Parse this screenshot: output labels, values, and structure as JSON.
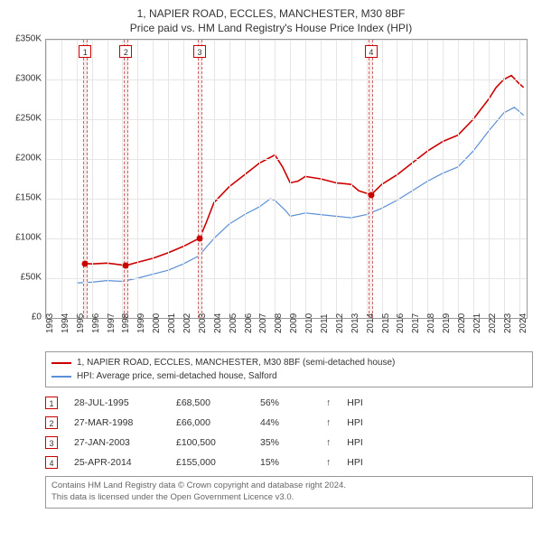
{
  "titleMain": "1, NAPIER ROAD, ECCLES, MANCHESTER, M30 8BF",
  "titleSub": "Price paid vs. HM Land Registry's House Price Index (HPI)",
  "chart": {
    "type": "line",
    "background_color": "#ffffff",
    "grid_color": "#e6e6e6",
    "border_color": "#999999",
    "xlim": [
      1993,
      2024.5
    ],
    "ylim": [
      0,
      350000
    ],
    "ytick_step": 50000,
    "yticks_labels": [
      "£0",
      "£50K",
      "£100K",
      "£150K",
      "£200K",
      "£250K",
      "£300K",
      "£350K"
    ],
    "xticks": [
      1993,
      1994,
      1995,
      1996,
      1997,
      1998,
      1999,
      2000,
      2001,
      2002,
      2003,
      2004,
      2005,
      2006,
      2007,
      2008,
      2009,
      2010,
      2011,
      2012,
      2013,
      2014,
      2015,
      2016,
      2017,
      2018,
      2019,
      2020,
      2021,
      2022,
      2023,
      2024
    ],
    "label_fontsize": 10,
    "line_width_property": 1.6,
    "line_width_hpi": 1.2,
    "vband_fill": "#f7ecec",
    "vband_border": "#cc6666",
    "marker_box_border": "#cc0000",
    "marker_box_bg": "#ffffff",
    "series": {
      "property": {
        "label": "1, NAPIER ROAD, ECCLES, MANCHESTER, M30 8BF (semi-detached house)",
        "color": "#cc0000",
        "points": [
          [
            1995.56,
            68500
          ],
          [
            1996,
            68000
          ],
          [
            1997,
            69000
          ],
          [
            1998.23,
            66000
          ],
          [
            1999,
            70000
          ],
          [
            2000,
            75000
          ],
          [
            2001,
            82000
          ],
          [
            2002,
            90000
          ],
          [
            2003.07,
            100500
          ],
          [
            2003.5,
            120000
          ],
          [
            2004,
            145000
          ],
          [
            2005,
            165000
          ],
          [
            2006,
            180000
          ],
          [
            2007,
            195000
          ],
          [
            2007.5,
            200000
          ],
          [
            2008,
            205000
          ],
          [
            2008.5,
            190000
          ],
          [
            2009,
            170000
          ],
          [
            2009.5,
            172000
          ],
          [
            2010,
            178000
          ],
          [
            2011,
            175000
          ],
          [
            2012,
            170000
          ],
          [
            2013,
            168000
          ],
          [
            2013.5,
            160000
          ],
          [
            2014.31,
            155000
          ],
          [
            2015,
            168000
          ],
          [
            2016,
            180000
          ],
          [
            2017,
            195000
          ],
          [
            2018,
            210000
          ],
          [
            2019,
            222000
          ],
          [
            2020,
            230000
          ],
          [
            2021,
            250000
          ],
          [
            2022,
            275000
          ],
          [
            2022.5,
            290000
          ],
          [
            2023,
            300000
          ],
          [
            2023.5,
            305000
          ],
          [
            2024,
            295000
          ],
          [
            2024.3,
            290000
          ]
        ]
      },
      "hpi": {
        "label": "HPI: Average price, semi-detached house, Salford",
        "color": "#5b8fd6",
        "points": [
          [
            1995,
            44000
          ],
          [
            1996,
            45000
          ],
          [
            1997,
            47000
          ],
          [
            1998,
            46000
          ],
          [
            1999,
            50000
          ],
          [
            2000,
            55000
          ],
          [
            2001,
            60000
          ],
          [
            2002,
            68000
          ],
          [
            2003,
            78000
          ],
          [
            2004,
            100000
          ],
          [
            2005,
            118000
          ],
          [
            2006,
            130000
          ],
          [
            2007,
            140000
          ],
          [
            2007.7,
            150000
          ],
          [
            2008,
            148000
          ],
          [
            2008.7,
            135000
          ],
          [
            2009,
            128000
          ],
          [
            2010,
            132000
          ],
          [
            2011,
            130000
          ],
          [
            2012,
            128000
          ],
          [
            2013,
            126000
          ],
          [
            2014,
            130000
          ],
          [
            2015,
            138000
          ],
          [
            2016,
            148000
          ],
          [
            2017,
            160000
          ],
          [
            2018,
            172000
          ],
          [
            2019,
            182000
          ],
          [
            2020,
            190000
          ],
          [
            2021,
            210000
          ],
          [
            2022,
            235000
          ],
          [
            2023,
            258000
          ],
          [
            2023.7,
            265000
          ],
          [
            2024,
            260000
          ],
          [
            2024.3,
            255000
          ]
        ]
      }
    },
    "sale_markers": [
      {
        "n": "1",
        "x": 1995.56,
        "y": 68500
      },
      {
        "n": "2",
        "x": 1998.23,
        "y": 66000
      },
      {
        "n": "3",
        "x": 2003.07,
        "y": 100500
      },
      {
        "n": "4",
        "x": 2014.31,
        "y": 155000
      }
    ],
    "vbands": [
      {
        "x": 1995.56,
        "half": 0.15
      },
      {
        "x": 1998.23,
        "half": 0.15
      },
      {
        "x": 2003.07,
        "half": 0.15
      },
      {
        "x": 2014.31,
        "half": 0.15
      }
    ],
    "sale_dot_color": "#cc0000"
  },
  "legend": {
    "items": [
      {
        "color": "#cc0000",
        "label": "1, NAPIER ROAD, ECCLES, MANCHESTER, M30 8BF (semi-detached house)"
      },
      {
        "color": "#5b8fd6",
        "label": "HPI: Average price, semi-detached house, Salford"
      }
    ]
  },
  "salesTable": {
    "arrow": "↑",
    "hpi_label": "HPI",
    "rows": [
      {
        "n": "1",
        "date": "28-JUL-1995",
        "price": "£68,500",
        "pct": "56%"
      },
      {
        "n": "2",
        "date": "27-MAR-1998",
        "price": "£66,000",
        "pct": "44%"
      },
      {
        "n": "3",
        "date": "27-JAN-2003",
        "price": "£100,500",
        "pct": "35%"
      },
      {
        "n": "4",
        "date": "25-APR-2014",
        "price": "£155,000",
        "pct": "15%"
      }
    ]
  },
  "footer": {
    "line1": "Contains HM Land Registry data © Crown copyright and database right 2024.",
    "line2": "This data is licensed under the Open Government Licence v3.0."
  }
}
